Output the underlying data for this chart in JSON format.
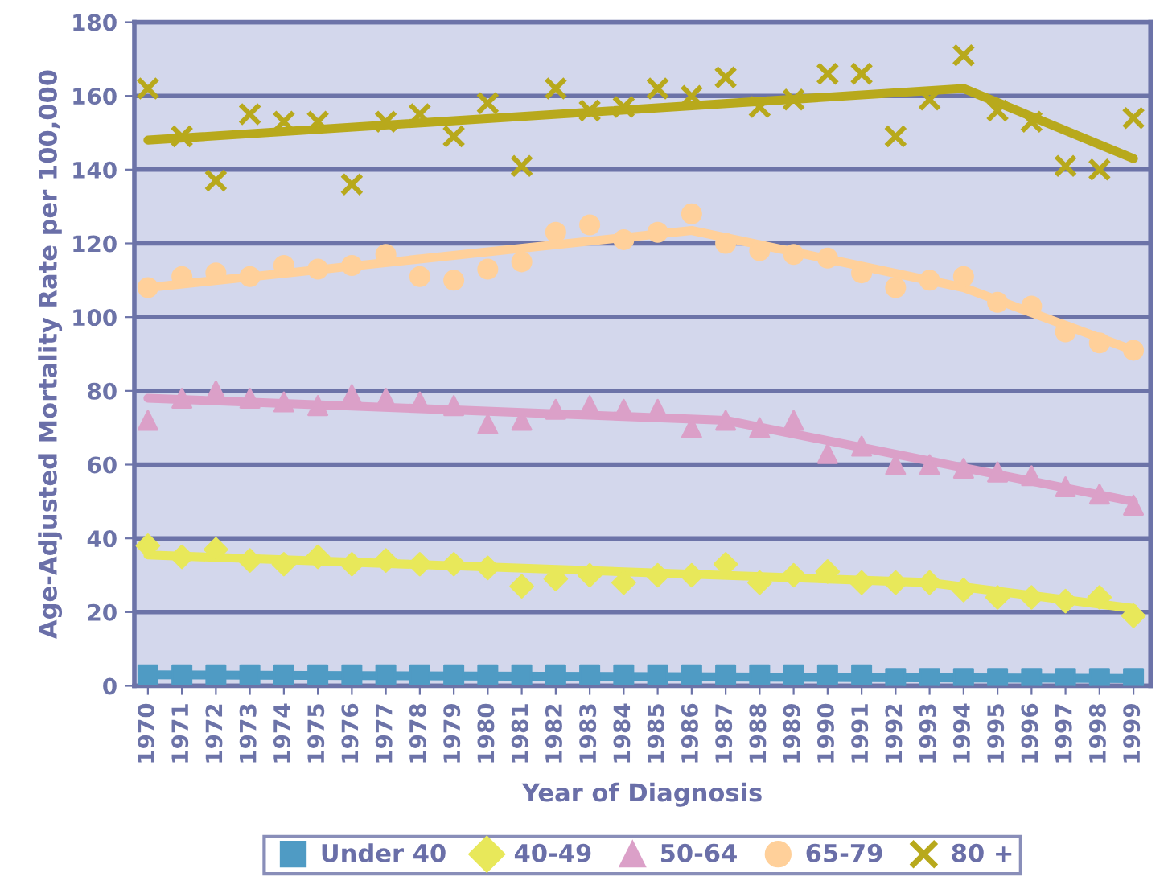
{
  "chart_data": {
    "type": "scatter",
    "xlabel": "Year of Diagnosis",
    "ylabel": "Age-Adjusted Mortality Rate per 100,000",
    "x": [
      1970,
      1971,
      1972,
      1973,
      1974,
      1975,
      1976,
      1977,
      1978,
      1979,
      1980,
      1981,
      1982,
      1983,
      1984,
      1985,
      1986,
      1987,
      1988,
      1989,
      1990,
      1991,
      1992,
      1993,
      1994,
      1995,
      1996,
      1997,
      1998,
      1999
    ],
    "series": [
      {
        "name": "Under 40",
        "color": "#4f9bc4",
        "marker": "square",
        "values": [
          3,
          3,
          3,
          3,
          3,
          3,
          3,
          3,
          3,
          3,
          3,
          3,
          3,
          3,
          3,
          3,
          3,
          3,
          3,
          3,
          3,
          3,
          2,
          2,
          2,
          2,
          2,
          2,
          2,
          2
        ]
      },
      {
        "name": "40-49",
        "color": "#e8e85a",
        "marker": "diamond",
        "values": [
          38,
          35,
          37,
          34,
          33,
          35,
          33,
          34,
          33,
          33,
          32,
          27,
          29,
          30,
          28,
          30,
          30,
          33,
          28,
          30,
          31,
          28,
          28,
          28,
          26,
          24,
          24,
          23,
          24,
          19
        ]
      },
      {
        "name": "50-64",
        "color": "#dba0c8",
        "marker": "triangle",
        "values": [
          72,
          78,
          80,
          78,
          77,
          76,
          79,
          78,
          77,
          76,
          71,
          72,
          75,
          76,
          75,
          75,
          70,
          72,
          70,
          72,
          63,
          65,
          60,
          60,
          59,
          58,
          57,
          54,
          52,
          49
        ]
      },
      {
        "name": "65-79",
        "color": "#ffd09a",
        "marker": "circle",
        "values": [
          108,
          111,
          112,
          111,
          114,
          113,
          114,
          117,
          111,
          110,
          113,
          115,
          123,
          125,
          121,
          123,
          128,
          120,
          118,
          117,
          116,
          112,
          108,
          110,
          111,
          104,
          103,
          96,
          93,
          91
        ]
      },
      {
        "name": "80 +",
        "color": "#b8a91c",
        "marker": "cross",
        "values": [
          162,
          149,
          137,
          155,
          153,
          153,
          136,
          153,
          155,
          149,
          158,
          141,
          162,
          156,
          157,
          162,
          160,
          165,
          157,
          159,
          166,
          166,
          149,
          159,
          171,
          156,
          153,
          141,
          140,
          154
        ]
      },
      {
        "type": "line",
        "color": "#4f9bc4",
        "x": [
          1970,
          1999
        ],
        "values": [
          3,
          2
        ]
      },
      {
        "type": "line",
        "color": "#e8e85a",
        "x": [
          1970,
          1993,
          1999
        ],
        "values": [
          35.5,
          28,
          21
        ]
      },
      {
        "type": "line",
        "color": "#dba0c8",
        "x": [
          1970,
          1987,
          1999
        ],
        "values": [
          78,
          72,
          50
        ]
      },
      {
        "type": "line",
        "color": "#ffd09a",
        "x": [
          1970,
          1986,
          1994,
          1999
        ],
        "values": [
          108,
          123.5,
          108,
          91
        ]
      },
      {
        "type": "line",
        "color": "#b8a91c",
        "x": [
          1970,
          1994,
          1999
        ],
        "values": [
          148,
          162,
          143
        ]
      }
    ],
    "xlim": [
      1969.6,
      1999.5
    ],
    "xticks": [
      1970,
      1971,
      1972,
      1973,
      1974,
      1975,
      1976,
      1977,
      1978,
      1979,
      1980,
      1981,
      1982,
      1983,
      1984,
      1985,
      1986,
      1987,
      1988,
      1989,
      1990,
      1991,
      1992,
      1993,
      1994,
      1995,
      1996,
      1997,
      1998,
      1999
    ],
    "ylim": [
      0,
      180
    ],
    "yticks": [
      0,
      20,
      40,
      60,
      80,
      100,
      120,
      140,
      160,
      180
    ],
    "grid": "y",
    "legend": "bottom"
  }
}
